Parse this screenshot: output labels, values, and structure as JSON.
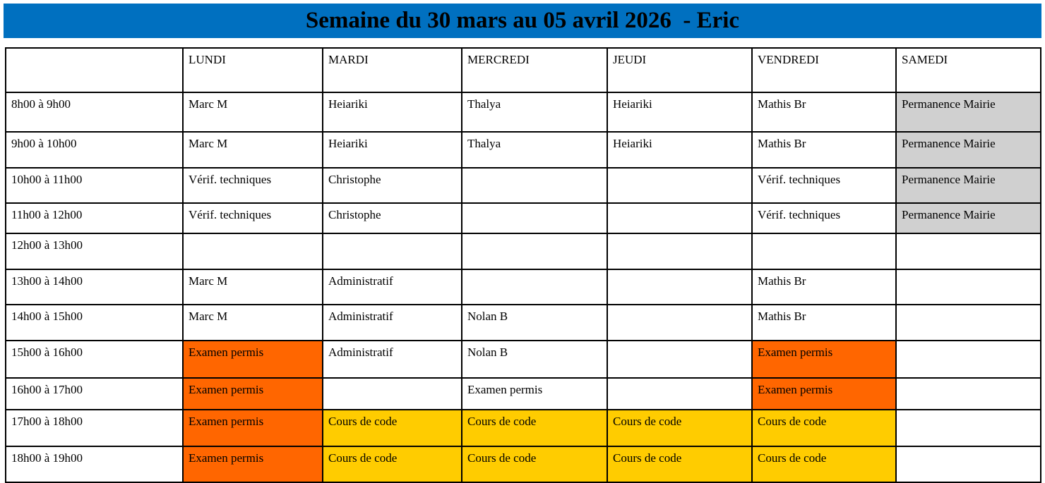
{
  "title": "Semaine du 30 mars au 05 avril 2026  - Eric",
  "colors": {
    "title_bar": "#0070C0",
    "examen": "#FF6600",
    "cours": "#FFCC00",
    "permanence": "#D0D0D0"
  },
  "days": [
    "LUNDI",
    "MARDI",
    "MERCREDI",
    "JEUDI",
    "VENDREDI",
    "SAMEDI"
  ],
  "rows": [
    {
      "time": "8h00 à 9h00",
      "cells": [
        "Marc M",
        "Heiariki",
        "Thalya",
        "Heiariki",
        "Mathis Br",
        "Permanence Mairie"
      ]
    },
    {
      "time": "9h00 à 10h00",
      "cells": [
        "Marc M",
        "Heiariki",
        "Thalya",
        "Heiariki",
        "Mathis Br",
        "Permanence Mairie"
      ]
    },
    {
      "time": "10h00 à 11h00",
      "cells": [
        "Vérif. techniques",
        "Christophe",
        "",
        "",
        "Vérif. techniques",
        "Permanence Mairie"
      ]
    },
    {
      "time": "11h00 à 12h00",
      "cells": [
        "Vérif. techniques",
        "Christophe",
        "",
        "",
        "Vérif. techniques",
        "Permanence Mairie"
      ]
    },
    {
      "time": "12h00 à 13h00",
      "cells": [
        "",
        "",
        "",
        "",
        "",
        ""
      ]
    },
    {
      "time": "13h00 à 14h00",
      "cells": [
        "Marc M",
        "Administratif",
        "",
        "",
        "Mathis Br",
        ""
      ]
    },
    {
      "time": "14h00 à 15h00",
      "cells": [
        "Marc M",
        "Administratif",
        "Nolan B",
        "",
        "Mathis Br",
        ""
      ]
    },
    {
      "time": "15h00 à 16h00",
      "cells": [
        "Examen permis",
        "Administratif",
        "Nolan B",
        "",
        "Examen permis",
        ""
      ]
    },
    {
      "time": "16h00 à 17h00",
      "cells": [
        "Examen permis",
        "",
        "Examen permis",
        "",
        "Examen permis",
        ""
      ]
    },
    {
      "time": "17h00 à 18h00",
      "cells": [
        "Examen permis",
        "Cours de code",
        "Cours de code",
        "Cours de code",
        "Cours de code",
        ""
      ]
    },
    {
      "time": "18h00 à 19h00",
      "cells": [
        "Examen permis",
        "Cours de code",
        "Cours de code",
        "Cours de code",
        "Cours de code",
        ""
      ]
    }
  ],
  "highlights": [
    {
      "row": 0,
      "col": 5,
      "kind": "permanence"
    },
    {
      "row": 1,
      "col": 5,
      "kind": "permanence"
    },
    {
      "row": 2,
      "col": 5,
      "kind": "permanence"
    },
    {
      "row": 3,
      "col": 5,
      "kind": "permanence"
    },
    {
      "row": 7,
      "col": 0,
      "kind": "examen"
    },
    {
      "row": 7,
      "col": 4,
      "kind": "examen"
    },
    {
      "row": 8,
      "col": 0,
      "kind": "examen"
    },
    {
      "row": 8,
      "col": 4,
      "kind": "examen"
    },
    {
      "row": 9,
      "col": 0,
      "kind": "examen"
    },
    {
      "row": 9,
      "col": 1,
      "kind": "cours"
    },
    {
      "row": 9,
      "col": 2,
      "kind": "cours"
    },
    {
      "row": 9,
      "col": 3,
      "kind": "cours"
    },
    {
      "row": 9,
      "col": 4,
      "kind": "cours"
    },
    {
      "row": 10,
      "col": 0,
      "kind": "examen"
    },
    {
      "row": 10,
      "col": 1,
      "kind": "cours"
    },
    {
      "row": 10,
      "col": 2,
      "kind": "cours"
    },
    {
      "row": 10,
      "col": 3,
      "kind": "cours"
    },
    {
      "row": 10,
      "col": 4,
      "kind": "cours"
    }
  ]
}
